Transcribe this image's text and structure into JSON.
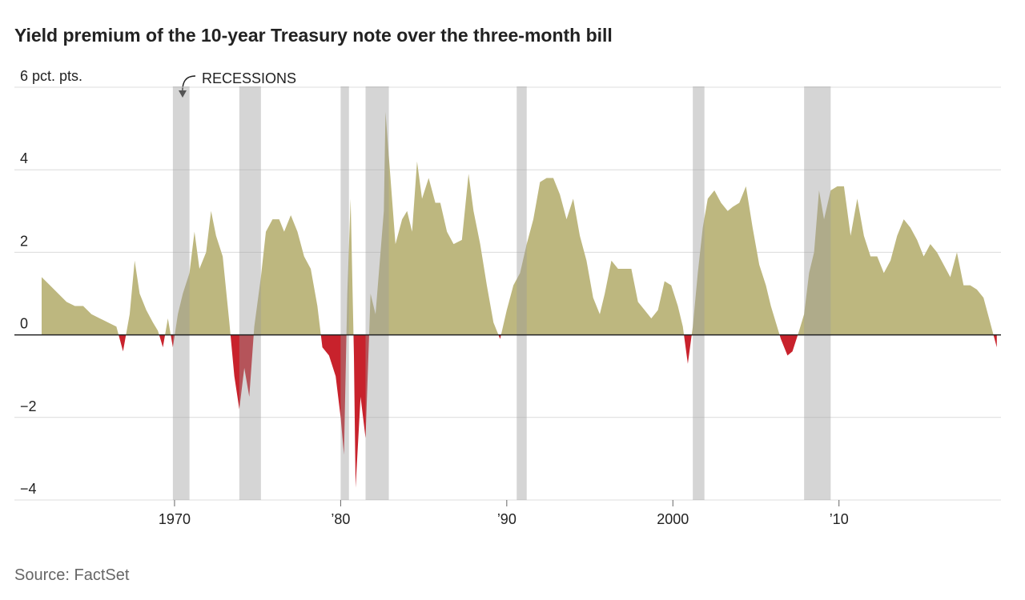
{
  "chart_data": {
    "type": "area",
    "title": "Yield premium of the 10-year Treasury note over the three-month bill",
    "source": "Source: FactSet",
    "annotation": "RECESSIONS",
    "positive_color": "#bdb77f",
    "negative_color": "#c8222c",
    "xlim": [
      1962,
      2019.8
    ],
    "ylim": [
      -4,
      6
    ],
    "yticks": [
      {
        "value": 6,
        "label": "6 pct. pts."
      },
      4,
      2,
      0,
      {
        "value": -2,
        "label": "−2"
      },
      {
        "value": -4,
        "label": "−4"
      }
    ],
    "xticks": [
      {
        "value": 1970,
        "label": "1970"
      },
      {
        "value": 1980,
        "label": "’80"
      },
      {
        "value": 1990,
        "label": "’90"
      },
      {
        "value": 2000,
        "label": "2000"
      },
      {
        "value": 2010,
        "label": "’10"
      }
    ],
    "grid": true,
    "recessions": [
      [
        1969.9,
        1970.9
      ],
      [
        1973.9,
        1975.2
      ],
      [
        1980.0,
        1980.5
      ],
      [
        1981.5,
        1982.9
      ],
      [
        1990.6,
        1991.2
      ],
      [
        2001.2,
        2001.9
      ],
      [
        2007.9,
        2009.5
      ]
    ],
    "x": [
      1962.0,
      1962.5,
      1963.0,
      1963.5,
      1964.0,
      1964.5,
      1965.0,
      1965.5,
      1966.0,
      1966.5,
      1966.9,
      1967.3,
      1967.6,
      1967.9,
      1968.3,
      1968.7,
      1969.0,
      1969.3,
      1969.6,
      1969.9,
      1970.2,
      1970.5,
      1970.9,
      1971.2,
      1971.5,
      1971.9,
      1972.2,
      1972.5,
      1972.9,
      1973.3,
      1973.6,
      1973.9,
      1974.2,
      1974.5,
      1974.8,
      1975.2,
      1975.5,
      1975.9,
      1976.3,
      1976.6,
      1977.0,
      1977.4,
      1977.8,
      1978.2,
      1978.6,
      1978.9,
      1979.3,
      1979.7,
      1980.0,
      1980.2,
      1980.4,
      1980.6,
      1980.8,
      1980.9,
      1981.2,
      1981.5,
      1981.8,
      1982.1,
      1982.4,
      1982.6,
      1982.7,
      1983.0,
      1983.3,
      1983.7,
      1984.0,
      1984.3,
      1984.6,
      1984.9,
      1985.3,
      1985.7,
      1986.0,
      1986.4,
      1986.8,
      1987.3,
      1987.7,
      1988.0,
      1988.4,
      1988.8,
      1989.2,
      1989.6,
      1990.0,
      1990.4,
      1990.8,
      1991.2,
      1991.6,
      1992.0,
      1992.4,
      1992.8,
      1993.2,
      1993.6,
      1994.0,
      1994.4,
      1994.8,
      1995.2,
      1995.6,
      1995.9,
      1996.3,
      1996.7,
      1997.1,
      1997.5,
      1997.9,
      1998.3,
      1998.7,
      1999.1,
      1999.5,
      1999.9,
      2000.3,
      2000.6,
      2000.9,
      2001.2,
      2001.5,
      2001.8,
      2002.1,
      2002.5,
      2002.9,
      2003.3,
      2003.6,
      2004.0,
      2004.4,
      2004.8,
      2005.2,
      2005.6,
      2005.9,
      2006.2,
      2006.5,
      2006.9,
      2007.2,
      2007.6,
      2007.9,
      2008.2,
      2008.5,
      2008.8,
      2009.1,
      2009.5,
      2009.9,
      2010.3,
      2010.7,
      2011.1,
      2011.5,
      2011.9,
      2012.3,
      2012.7,
      2013.1,
      2013.5,
      2013.9,
      2014.3,
      2014.7,
      2015.1,
      2015.5,
      2015.9,
      2016.3,
      2016.7,
      2017.1,
      2017.5,
      2017.9,
      2018.3,
      2018.7,
      2019.1,
      2019.5
    ],
    "values": [
      1.4,
      1.2,
      1.0,
      0.8,
      0.7,
      0.7,
      0.5,
      0.4,
      0.3,
      0.2,
      -0.4,
      0.5,
      1.8,
      1.0,
      0.6,
      0.3,
      0.1,
      -0.3,
      0.4,
      -0.3,
      0.5,
      1.0,
      1.5,
      2.5,
      1.6,
      2.0,
      3.0,
      2.4,
      1.9,
      0.3,
      -1.0,
      -1.8,
      -0.8,
      -1.5,
      0.2,
      1.4,
      2.5,
      2.8,
      2.8,
      2.5,
      2.9,
      2.5,
      1.9,
      1.6,
      0.7,
      -0.3,
      -0.5,
      -1.0,
      -2.0,
      -2.9,
      1.0,
      3.3,
      -0.5,
      -3.7,
      -1.5,
      -2.5,
      1.0,
      0.5,
      2.0,
      3.0,
      5.4,
      3.8,
      2.2,
      2.8,
      3.0,
      2.5,
      4.2,
      3.3,
      3.8,
      3.2,
      3.2,
      2.5,
      2.2,
      2.3,
      3.9,
      3.0,
      2.2,
      1.2,
      0.3,
      -0.1,
      0.6,
      1.2,
      1.5,
      2.2,
      2.8,
      3.7,
      3.8,
      3.8,
      3.4,
      2.8,
      3.3,
      2.4,
      1.8,
      0.9,
      0.5,
      1.0,
      1.8,
      1.6,
      1.6,
      1.6,
      0.8,
      0.6,
      0.4,
      0.6,
      1.3,
      1.2,
      0.7,
      0.2,
      -0.7,
      0.2,
      1.5,
      2.6,
      3.3,
      3.5,
      3.2,
      3.0,
      3.1,
      3.2,
      3.6,
      2.6,
      1.7,
      1.2,
      0.7,
      0.3,
      -0.1,
      -0.5,
      -0.4,
      0.1,
      0.5,
      1.5,
      2.0,
      3.5,
      2.8,
      3.5,
      3.6,
      3.6,
      2.4,
      3.3,
      2.4,
      1.9,
      1.9,
      1.5,
      1.8,
      2.4,
      2.8,
      2.6,
      2.3,
      1.9,
      2.2,
      2.0,
      1.7,
      1.4,
      2.0,
      1.2,
      1.2,
      1.1,
      0.9,
      0.3,
      -0.3
    ]
  }
}
